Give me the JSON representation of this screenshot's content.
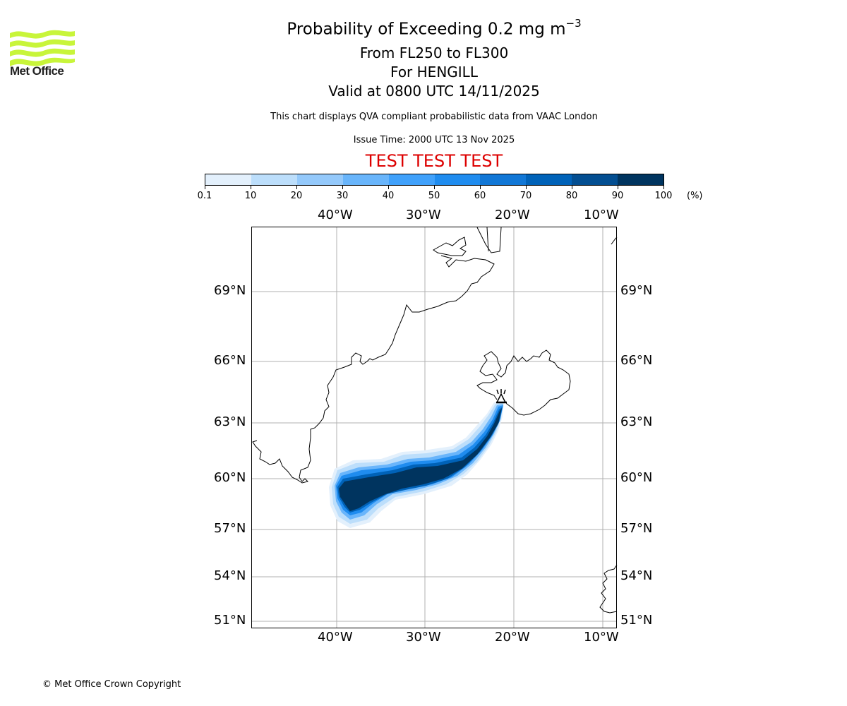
{
  "header": {
    "title_main": "Probability of Exceeding 0.2 mg m",
    "title_sup": "−3",
    "subtitle_levels": "From FL250 to FL300",
    "subtitle_volcano": "For HENGILL",
    "subtitle_valid": "Valid at 0800 UTC 14/11/2025",
    "disclaimer": "This chart displays QVA compliant probabilistic data from VAAC London",
    "issue_time": "Issue Time: 2000 UTC 13 Nov 2025",
    "test_banner": "TEST TEST TEST",
    "test_color": "#dd0000"
  },
  "logo": {
    "text": "Met Office",
    "color": "#c8f53a"
  },
  "footer": {
    "copyright": "© Met Office Crown Copyright"
  },
  "colorbar": {
    "unit": "(%)",
    "ticks": [
      "0.1",
      "10",
      "20",
      "30",
      "40",
      "50",
      "60",
      "70",
      "80",
      "90",
      "100"
    ],
    "colors": [
      "#e3f0fc",
      "#bcdefb",
      "#94c9fb",
      "#69b5fb",
      "#40a1fb",
      "#1f8cef",
      "#1177d6",
      "#0062b8",
      "#034e91",
      "#00345f"
    ]
  },
  "chart_data": {
    "type": "heatmap",
    "title": "Probability of Exceeding 0.2 mg m−3",
    "projection": "lat-lon map",
    "lon_ticks": [
      "40°W",
      "30°W",
      "20°W",
      "10°W"
    ],
    "lat_ticks": [
      "69°N",
      "66°N",
      "63°N",
      "60°N",
      "57°N",
      "54°N",
      "51°N"
    ],
    "lon_range": [
      -49.5,
      -8.5
    ],
    "lat_range": [
      50.7,
      71.5
    ],
    "grid": true,
    "volcano": {
      "name": "HENGILL",
      "lat": 64.1,
      "lon": -21.3
    },
    "value_range_percent": [
      0.1,
      100
    ],
    "plume_description": "Ash probability plume extending from Hengill (Iceland) southwest to approx 38°W 58.5°N; core exceeds 90% along most of its length",
    "plume_core_path": [
      {
        "lon": -21.3,
        "lat": 64.0
      },
      {
        "lon": -22.0,
        "lat": 62.8
      },
      {
        "lon": -23.5,
        "lat": 61.6
      },
      {
        "lon": -26.0,
        "lat": 60.6
      },
      {
        "lon": -30.0,
        "lat": 60.1
      },
      {
        "lon": -34.0,
        "lat": 59.8
      },
      {
        "lon": -37.5,
        "lat": 59.5
      },
      {
        "lon": -38.0,
        "lat": 58.7
      }
    ]
  }
}
